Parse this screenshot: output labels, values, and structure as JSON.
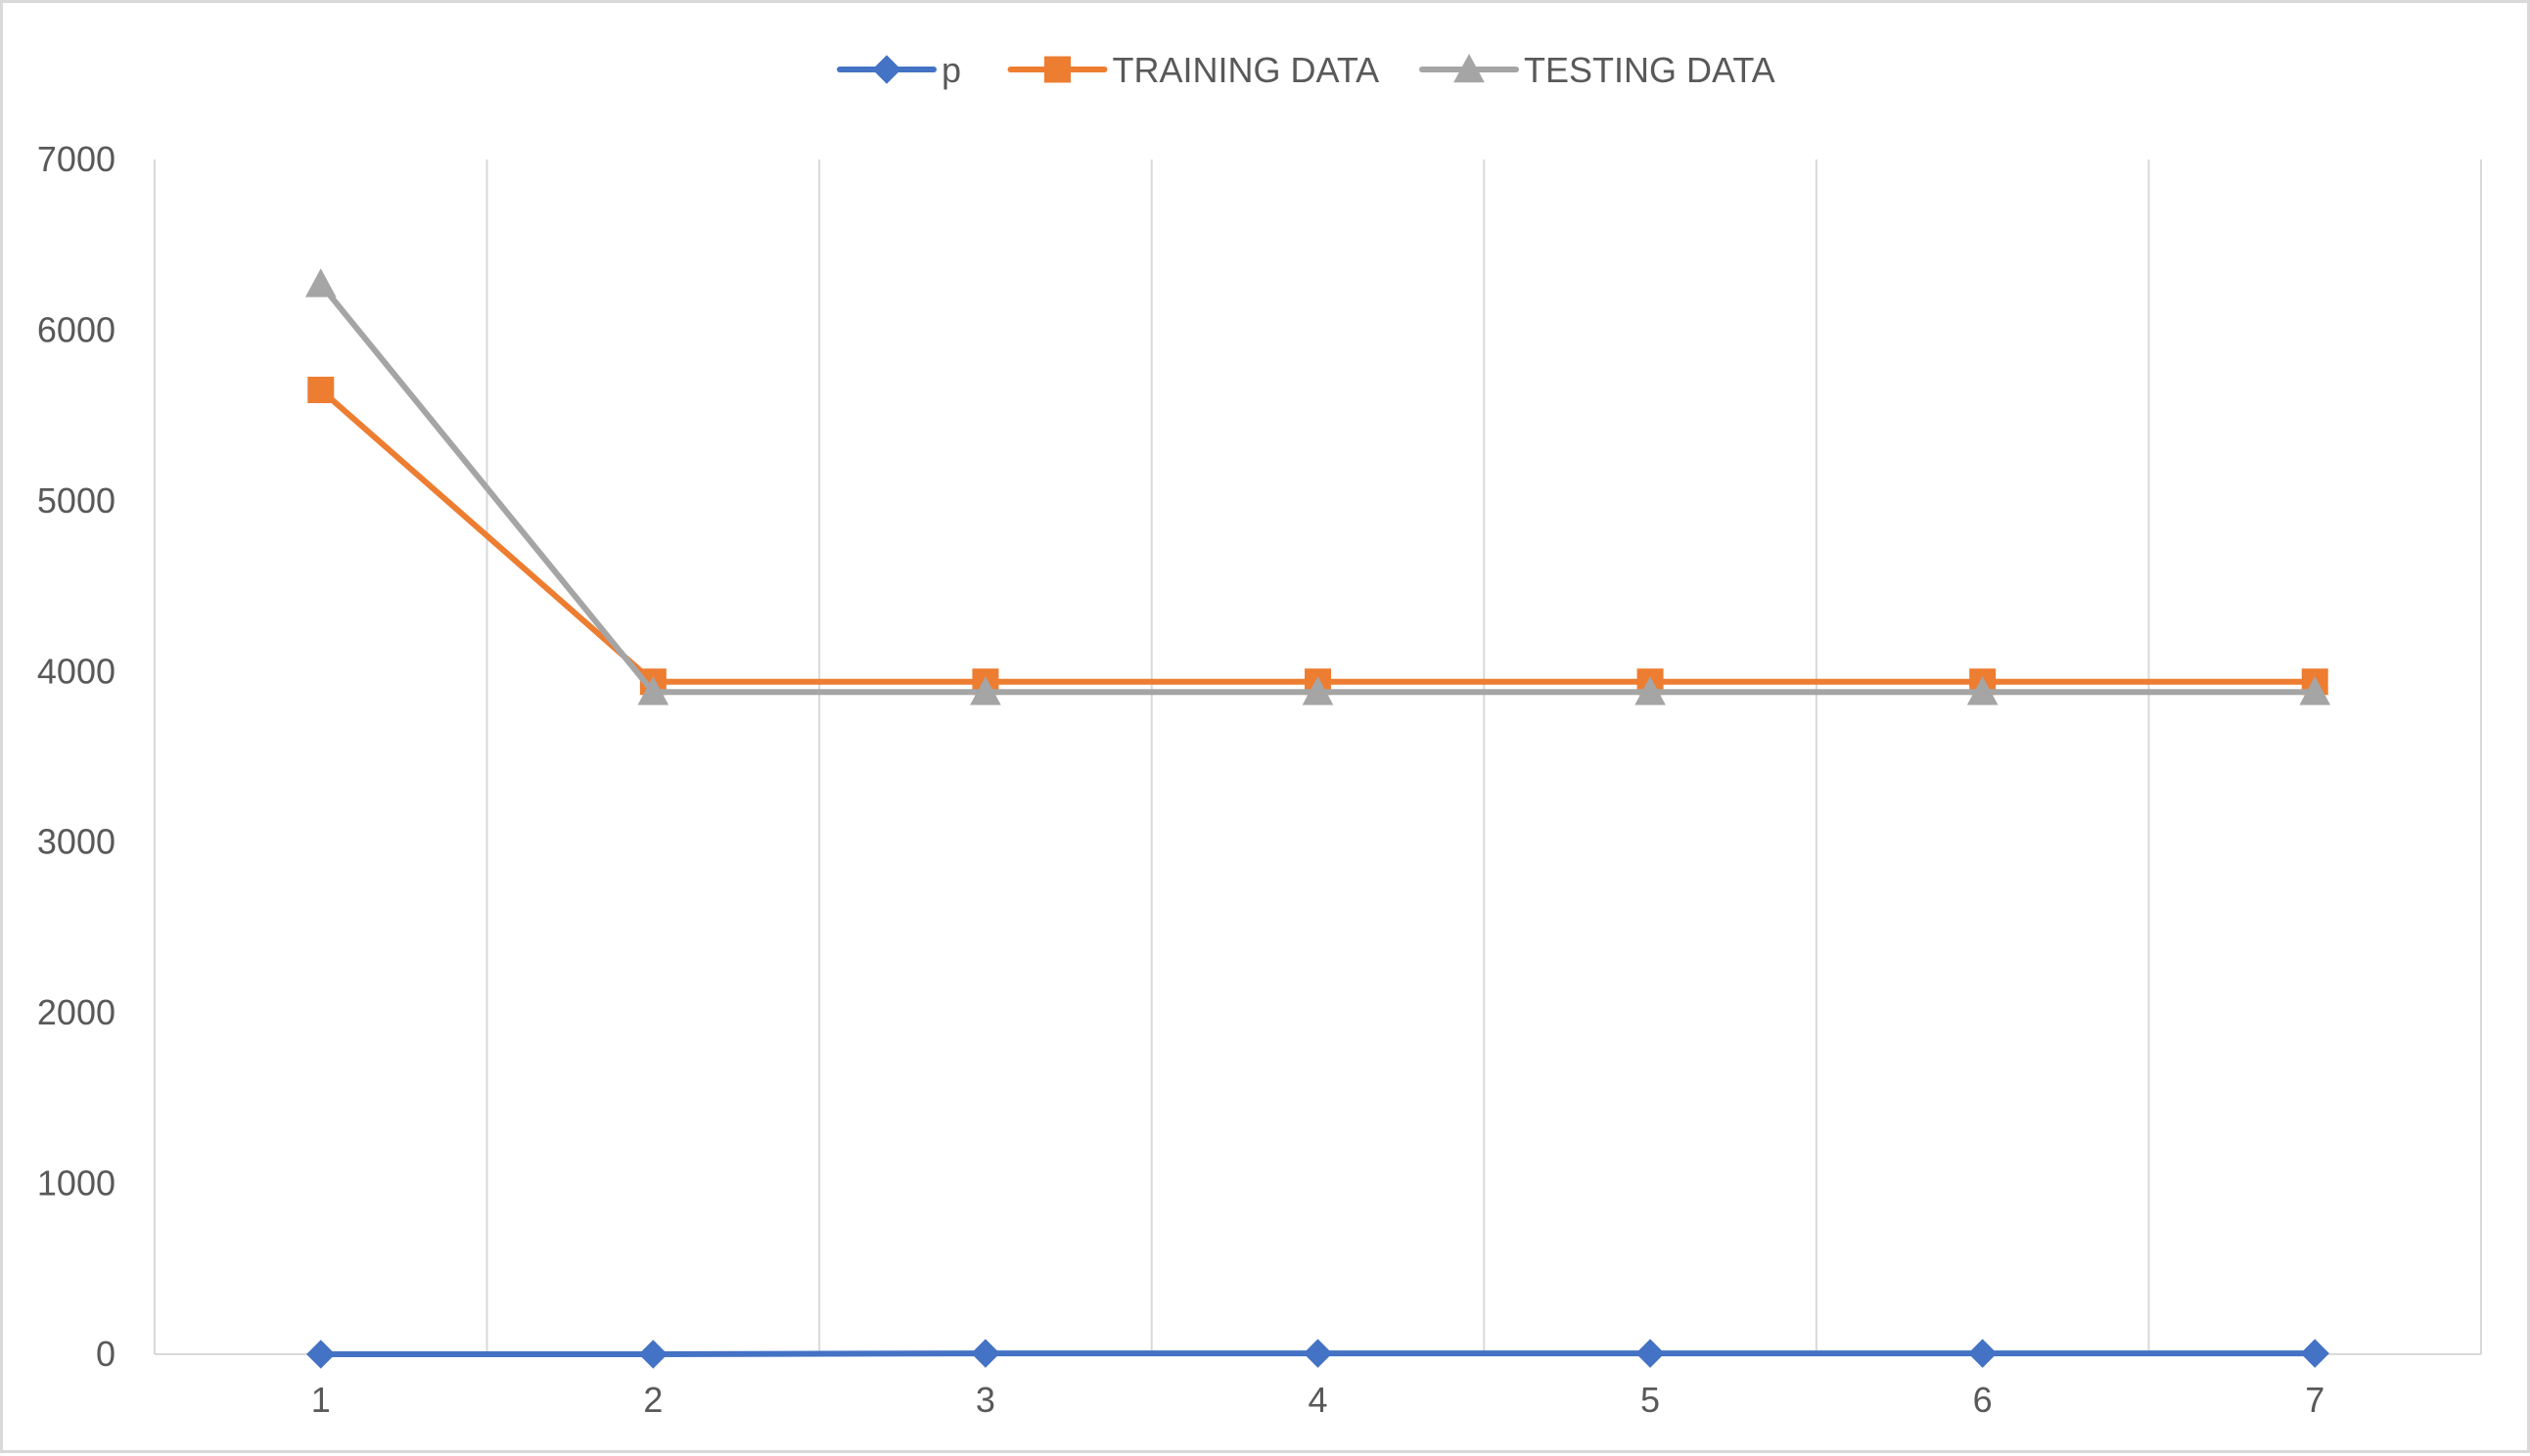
{
  "chart_data": {
    "type": "line",
    "title": "",
    "xlabel": "",
    "ylabel": "",
    "categories": [
      "1",
      "2",
      "3",
      "4",
      "5",
      "6",
      "7"
    ],
    "ylim": [
      0,
      7000
    ],
    "yticks": [
      0,
      1000,
      2000,
      3000,
      4000,
      5000,
      6000,
      7000
    ],
    "grid": "vertical",
    "legend_position": "top",
    "series": [
      {
        "name": "p",
        "color": "#4472c4",
        "marker": "diamond",
        "values": [
          0,
          0,
          5,
          5,
          5,
          5,
          5
        ]
      },
      {
        "name": "TRAINING DATA",
        "color": "#ed7d31",
        "marker": "square",
        "values": [
          5650,
          3940,
          3940,
          3940,
          3940,
          3940,
          3940
        ]
      },
      {
        "name": "TESTING DATA",
        "color": "#a5a5a5",
        "marker": "triangle",
        "values": [
          6270,
          3880,
          3880,
          3880,
          3880,
          3880,
          3880
        ]
      }
    ]
  },
  "colors": {
    "gridline": "#d9d9d9",
    "axis_line": "#d9d9d9",
    "text": "#595959"
  }
}
